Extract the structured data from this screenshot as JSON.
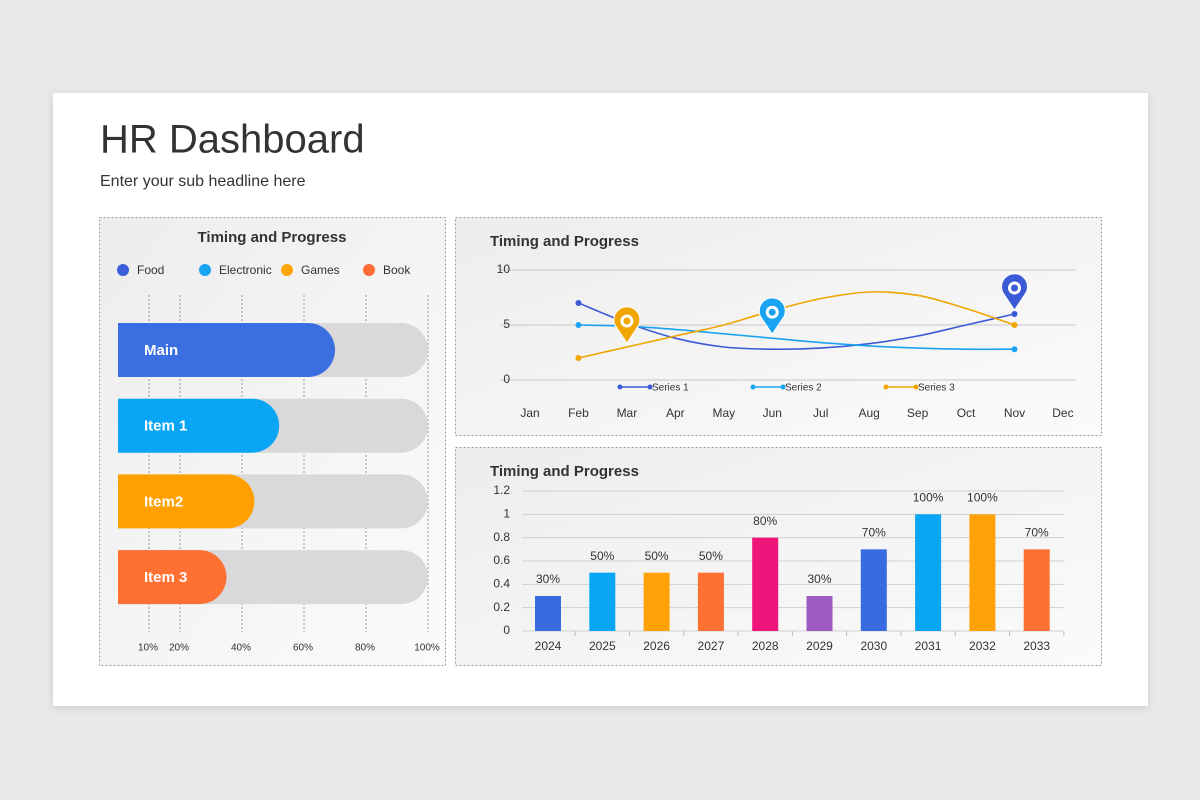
{
  "header": {
    "title": "HR Dashboard",
    "subtitle": "Enter your sub headline here"
  },
  "chart_data": [
    {
      "type": "hbar",
      "title": "Timing and Progress",
      "legend": [
        {
          "name": "Food",
          "color": "#3a5fd9"
        },
        {
          "name": "Electronic",
          "color": "#1aa3f0"
        },
        {
          "name": "Games",
          "color": "#ffa50a"
        },
        {
          "name": "Book",
          "color": "#ff6b35"
        }
      ],
      "categories": [
        "Main",
        "Item 1",
        "Item2",
        "Item 3"
      ],
      "values": [
        70,
        52,
        44,
        35
      ],
      "colors": [
        "#3b6ee0",
        "#0aa5f5",
        "#ffa000",
        "#ff7033"
      ],
      "track_color": "#d9d9d9",
      "xlim": [
        0,
        100
      ],
      "xticks": [
        {
          "value": 10,
          "label": "10%"
        },
        {
          "value": 20,
          "label": "20%"
        },
        {
          "value": 40,
          "label": "40%"
        },
        {
          "value": 60,
          "label": "60%"
        },
        {
          "value": 80,
          "label": "80%"
        },
        {
          "value": 100,
          "label": "100%"
        }
      ],
      "grid": true
    },
    {
      "type": "line",
      "title": "Timing and Progress",
      "categories": [
        "Jan",
        "Feb",
        "Mar",
        "Apr",
        "May",
        "Jun",
        "Jul",
        "Aug",
        "Sep",
        "Oct",
        "Nov",
        "Dec"
      ],
      "series": [
        {
          "name": "Series 1",
          "color": "#3b5bd6",
          "values": [
            null,
            7,
            5.2,
            3.8,
            3.0,
            2.8,
            2.9,
            3.3,
            4.0,
            5.0,
            6,
            null
          ]
        },
        {
          "name": "Series 2",
          "color": "#1aa3f0",
          "values": [
            null,
            5,
            4.9,
            4.6,
            4.2,
            3.8,
            3.4,
            3.1,
            2.9,
            2.8,
            2.8,
            null
          ]
        },
        {
          "name": "Series 3",
          "color": "#f0a500",
          "values": [
            null,
            2,
            3,
            4,
            5,
            6.3,
            7.4,
            8,
            7.7,
            6.5,
            5,
            null
          ]
        }
      ],
      "ylim": [
        0,
        10
      ],
      "yticks": [
        0,
        5,
        10
      ],
      "grid": true
    },
    {
      "type": "bar",
      "title": "Timing and Progress",
      "categories": [
        "2024",
        "2025",
        "2026",
        "2027",
        "2028",
        "2029",
        "2030",
        "2031",
        "2032",
        "2033"
      ],
      "values": [
        0.3,
        0.5,
        0.5,
        0.5,
        0.8,
        0.3,
        0.7,
        1,
        1,
        0.7
      ],
      "value_labels": [
        "30%",
        "50%",
        "50%",
        "50%",
        "80%",
        "30%",
        "70%",
        "100%",
        "100%",
        "70%"
      ],
      "colors": [
        "#386be0",
        "#08a6f5",
        "#ffa208",
        "#ff7033",
        "#f0157a",
        "#a05bc0",
        "#386be0",
        "#08a6f5",
        "#ffa208",
        "#ff7033"
      ],
      "ylim": [
        0,
        1.2
      ],
      "yticks": [
        0,
        0.2,
        0.4,
        0.6,
        0.8,
        1,
        1.2
      ],
      "grid": true
    }
  ]
}
